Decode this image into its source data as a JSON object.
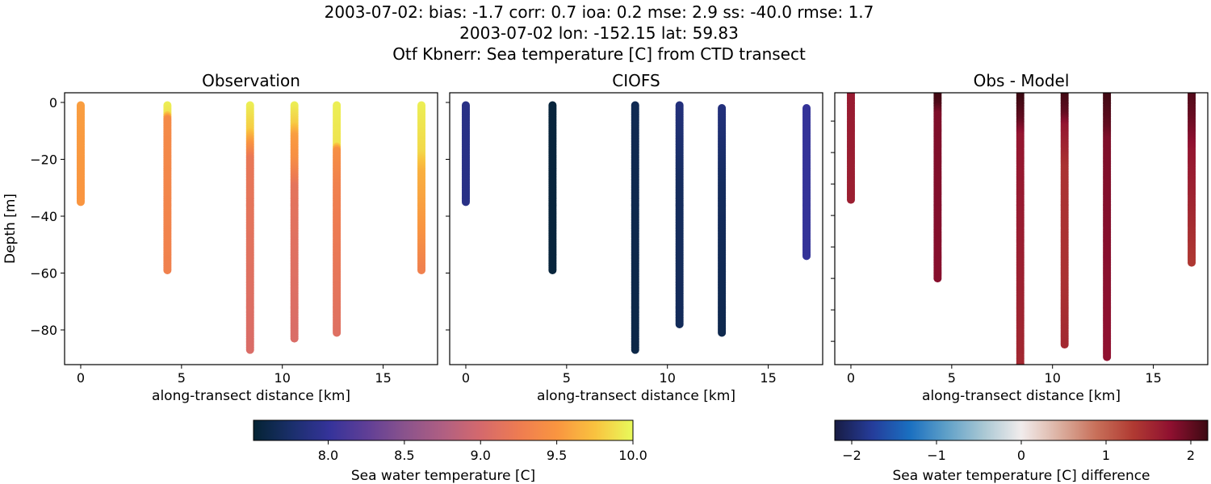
{
  "title_lines": [
    "2003-07-02: bias: -1.7  corr: 0.7  ioa: 0.2  mse: 2.9  ss: -40.0  rmse: 1.7",
    "2003-07-02 lon: -152.15 lat: 59.83",
    "Otf Kbnerr: Sea temperature [C] from CTD transect"
  ],
  "chart_data": [
    {
      "type": "scatter",
      "title": "Observation",
      "xlabel": "along-transect distance [km]",
      "ylabel": "Depth [m]",
      "xlim": [
        -0.8,
        17.7
      ],
      "ylim": [
        -92.2,
        3.4
      ],
      "xticks": [
        0,
        5,
        10,
        15
      ],
      "yticks": [
        0,
        -20,
        -40,
        -60,
        -80
      ],
      "ytick_labels": [
        "0",
        "−20",
        "−40",
        "−60",
        "−80"
      ],
      "colormap": "thermal",
      "vmin": 7.51,
      "vmax": 10.0,
      "casts": [
        {
          "x": 0.0,
          "profile": [
            [
              -1,
              9.55
            ],
            [
              -35,
              9.5
            ]
          ]
        },
        {
          "x": 4.3,
          "profile": [
            [
              -1,
              9.95
            ],
            [
              -4,
              9.9
            ],
            [
              -6,
              9.4
            ],
            [
              -59,
              9.3
            ]
          ]
        },
        {
          "x": 8.4,
          "profile": [
            [
              -1,
              9.95
            ],
            [
              -10,
              9.8
            ],
            [
              -13,
              9.6
            ],
            [
              -20,
              9.2
            ],
            [
              -87,
              9.05
            ]
          ]
        },
        {
          "x": 10.6,
          "profile": [
            [
              -1,
              9.95
            ],
            [
              -8,
              9.8
            ],
            [
              -12,
              9.55
            ],
            [
              -20,
              9.45
            ],
            [
              -30,
              9.15
            ],
            [
              -83,
              9.05
            ]
          ]
        },
        {
          "x": 12.7,
          "profile": [
            [
              -1,
              9.95
            ],
            [
              -15,
              9.9
            ],
            [
              -17,
              9.45
            ],
            [
              -30,
              9.3
            ],
            [
              -81,
              9.1
            ]
          ]
        },
        {
          "x": 16.9,
          "profile": [
            [
              -1,
              9.95
            ],
            [
              -18,
              9.85
            ],
            [
              -25,
              9.65
            ],
            [
              -45,
              9.5
            ],
            [
              -59,
              9.3
            ]
          ]
        }
      ]
    },
    {
      "type": "scatter",
      "title": "CIOFS",
      "xlabel": "along-transect distance [km]",
      "xlim": [
        -0.8,
        17.7
      ],
      "ylim": [
        -92.2,
        3.4
      ],
      "xticks": [
        0,
        5,
        10,
        15
      ],
      "yticks": [
        0,
        -20,
        -40,
        -60,
        -80
      ],
      "colormap": "thermal",
      "vmin": 7.51,
      "vmax": 10.0,
      "casts": [
        {
          "x": 0.0,
          "profile": [
            [
              -1,
              7.9
            ],
            [
              -35,
              7.9
            ]
          ]
        },
        {
          "x": 4.3,
          "profile": [
            [
              -1,
              7.55
            ],
            [
              -59,
              7.55
            ]
          ]
        },
        {
          "x": 8.4,
          "profile": [
            [
              -1,
              7.65
            ],
            [
              -87,
              7.6
            ]
          ]
        },
        {
          "x": 10.6,
          "profile": [
            [
              -1,
              7.85
            ],
            [
              -30,
              7.7
            ],
            [
              -78,
              7.68
            ]
          ]
        },
        {
          "x": 12.7,
          "profile": [
            [
              -2,
              7.85
            ],
            [
              -30,
              7.7
            ],
            [
              -81,
              7.63
            ]
          ]
        },
        {
          "x": 16.9,
          "profile": [
            [
              -2,
              8.0
            ],
            [
              -54,
              8.0
            ]
          ]
        }
      ]
    },
    {
      "type": "scatter",
      "title": "Obs - Model",
      "xlabel": "along-transect distance [km]",
      "xlim": [
        -0.8,
        17.7
      ],
      "ylim": [
        -87.4,
        -1.0
      ],
      "xticks": [
        0,
        5,
        10,
        15
      ],
      "yticks": [
        -10,
        -20,
        -30,
        -40,
        -50,
        -60,
        -70,
        -80
      ],
      "colormap": "balance",
      "vmin": -2.2,
      "vmax": 2.2,
      "casts": [
        {
          "x": 0.0,
          "profile": [
            [
              -1,
              1.65
            ],
            [
              -35,
              1.6
            ]
          ]
        },
        {
          "x": 4.3,
          "profile": [
            [
              -1,
              2.2
            ],
            [
              -5,
              2.1
            ],
            [
              -8,
              1.85
            ],
            [
              -60,
              1.8
            ]
          ]
        },
        {
          "x": 8.4,
          "profile": [
            [
              -1,
              2.25
            ],
            [
              -10,
              2.0
            ],
            [
              -15,
              1.7
            ],
            [
              -90,
              1.5
            ]
          ]
        },
        {
          "x": 10.6,
          "profile": [
            [
              -1,
              2.2
            ],
            [
              -8,
              2.0
            ],
            [
              -12,
              1.7
            ],
            [
              -25,
              1.4
            ],
            [
              -60,
              1.4
            ],
            [
              -81,
              1.5
            ]
          ]
        },
        {
          "x": 12.7,
          "profile": [
            [
              -1,
              2.2
            ],
            [
              -12,
              2.0
            ],
            [
              -16,
              1.85
            ],
            [
              -85,
              1.75
            ]
          ]
        },
        {
          "x": 16.9,
          "profile": [
            [
              -1,
              2.1
            ],
            [
              -10,
              1.95
            ],
            [
              -20,
              1.7
            ],
            [
              -40,
              1.5
            ],
            [
              -55,
              1.35
            ]
          ]
        }
      ]
    }
  ],
  "colorbars": [
    {
      "label": "Sea water temperature [C]",
      "colormap": "thermal",
      "vmin": 7.51,
      "vmax": 10.0,
      "ticks": [
        8.0,
        8.5,
        9.0,
        9.5,
        10.0
      ],
      "tick_labels": [
        "8.0",
        "8.5",
        "9.0",
        "9.5",
        "10.0"
      ]
    },
    {
      "label": "Sea water temperature [C] difference",
      "colormap": "balance",
      "vmin": -2.2,
      "vmax": 2.2,
      "ticks": [
        -2,
        -1,
        0,
        1,
        2
      ],
      "tick_labels": [
        "−2",
        "−1",
        "0",
        "1",
        "2"
      ]
    }
  ],
  "colormaps": {
    "thermal": [
      "#042333",
      "#1a2f6b",
      "#35339a",
      "#603f96",
      "#8a538c",
      "#b05f82",
      "#d5696c",
      "#ee7c51",
      "#f99540",
      "#f9c23f",
      "#e8fa5b"
    ],
    "balance": [
      "#181c43",
      "#253c9a",
      "#1a6fc0",
      "#5fa0c8",
      "#aac8d4",
      "#f1ecec",
      "#dcb1a2",
      "#c8705a",
      "#b03a32",
      "#8f1030",
      "#3c0912"
    ]
  }
}
